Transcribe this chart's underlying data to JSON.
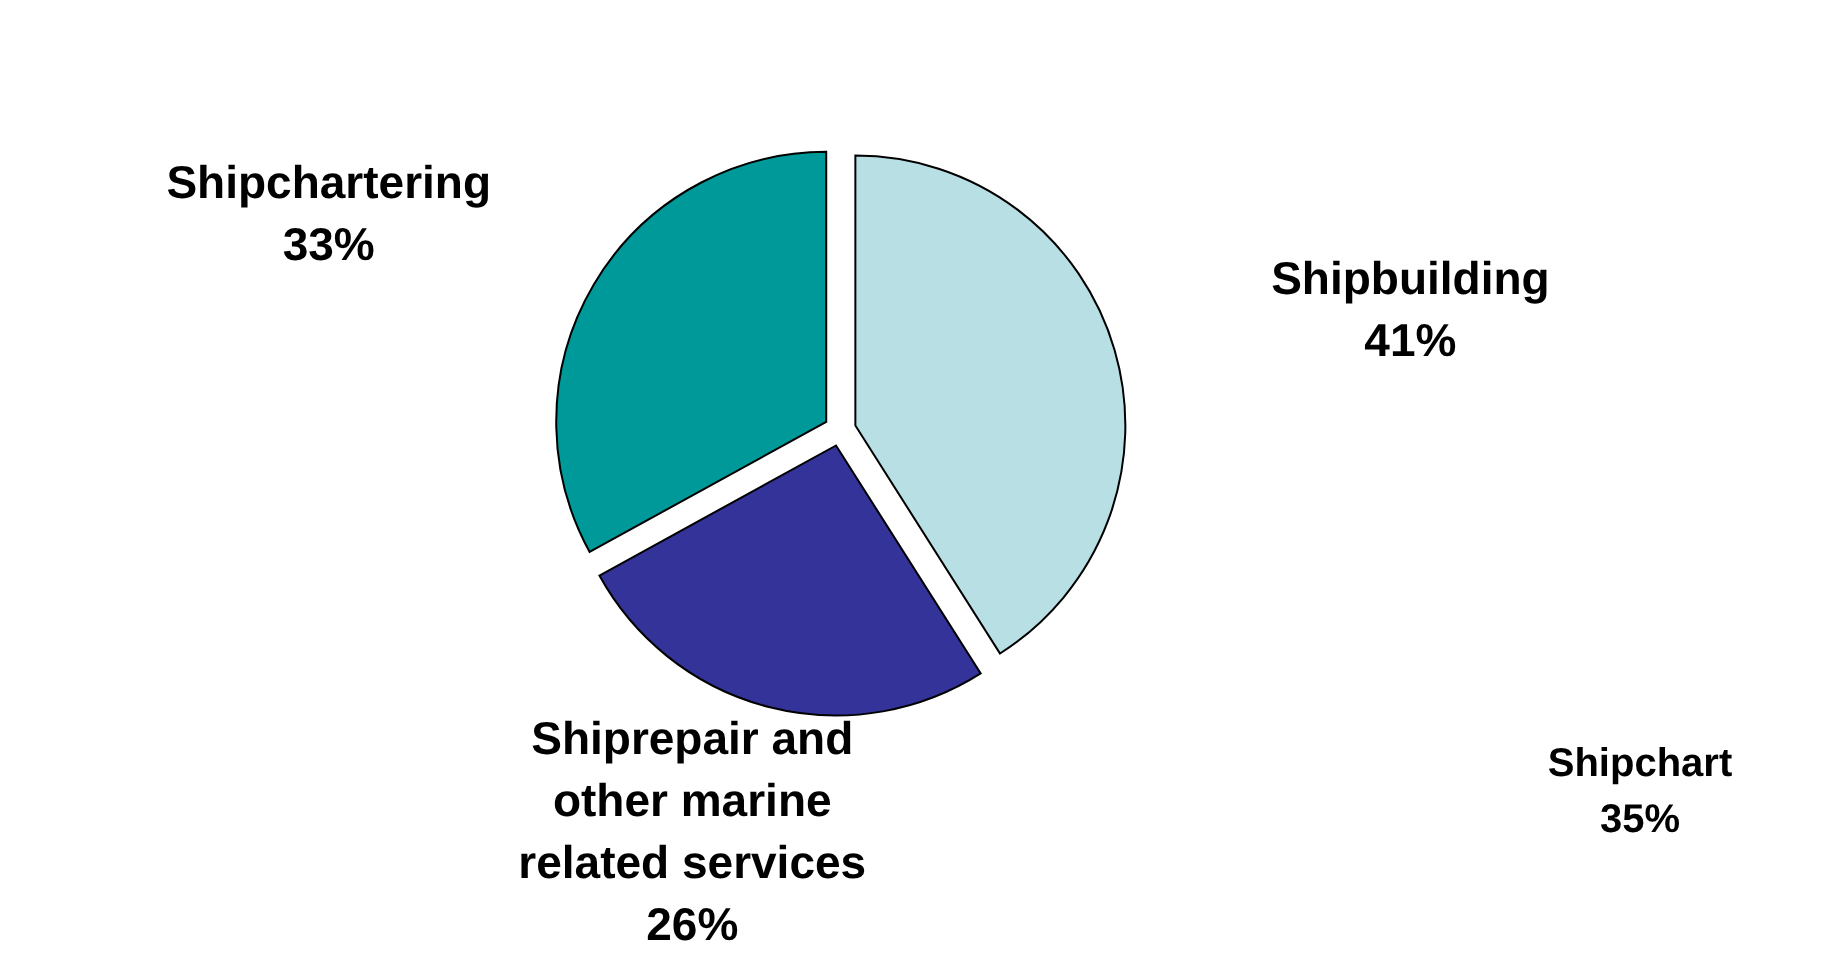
{
  "chart_data": {
    "type": "pie",
    "categories": [
      "Shipbuilding",
      "Shiprepair and other marine related services",
      "Shipchartering"
    ],
    "values": [
      41,
      26,
      33
    ],
    "value_labels": [
      "41%",
      "26%",
      "33%"
    ],
    "colors": [
      "#b8dfe3",
      "#333399",
      "#009999"
    ],
    "annotations": [
      "Shipchart\n35%"
    ]
  }
}
